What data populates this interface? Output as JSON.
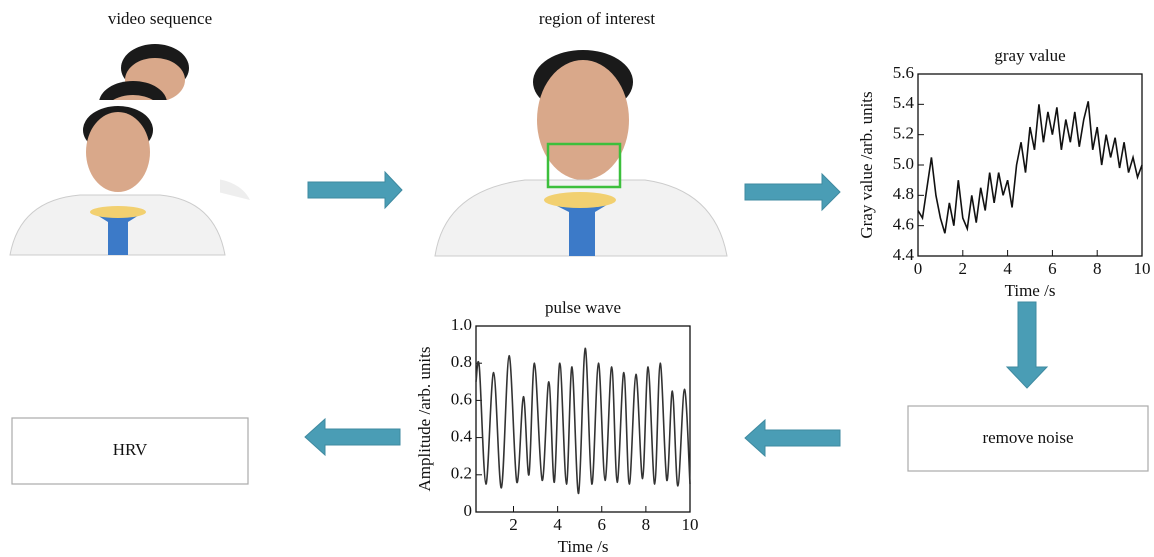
{
  "labels": {
    "video": "video sequence",
    "roi": "region of interest",
    "hrv": "HRV",
    "remove_noise": "remove noise"
  },
  "charts": [
    {
      "type": "line",
      "title": "gray value",
      "xlabel": "Time /s",
      "ylabel": "Gray value /arb. units",
      "color": "#111111",
      "xlim": [
        0,
        10
      ],
      "ylim": [
        4.4,
        5.6
      ],
      "xticks": [
        0,
        2,
        4,
        6,
        8,
        10
      ],
      "yticks": [
        4.4,
        4.6,
        4.8,
        {
          "value": 5,
          "label": "5.0"
        },
        5.2,
        5.4,
        5.6
      ],
      "x": [
        0,
        0.2,
        0.4,
        0.6,
        0.8,
        1.0,
        1.2,
        1.4,
        1.6,
        1.8,
        2.0,
        2.2,
        2.4,
        2.6,
        2.8,
        3.0,
        3.2,
        3.4,
        3.6,
        3.8,
        4.0,
        4.2,
        4.4,
        4.6,
        4.8,
        5.0,
        5.2,
        5.4,
        5.6,
        5.8,
        6.0,
        6.2,
        6.4,
        6.6,
        6.8,
        7.0,
        7.2,
        7.4,
        7.6,
        7.8,
        8.0,
        8.2,
        8.4,
        8.6,
        8.8,
        9.0,
        9.2,
        9.4,
        9.6,
        9.8,
        10
      ],
      "values": [
        4.7,
        4.65,
        4.85,
        5.05,
        4.8,
        4.65,
        4.55,
        4.75,
        4.6,
        4.9,
        4.65,
        4.58,
        4.8,
        4.62,
        4.85,
        4.7,
        4.95,
        4.75,
        4.95,
        4.8,
        4.9,
        4.72,
        5.0,
        5.15,
        4.95,
        5.25,
        5.1,
        5.4,
        5.15,
        5.35,
        5.2,
        5.38,
        5.1,
        5.3,
        5.15,
        5.35,
        5.12,
        5.3,
        5.42,
        5.1,
        5.25,
        5.0,
        5.2,
        5.05,
        5.18,
        4.98,
        5.15,
        4.95,
        5.05,
        4.92,
        5.0
      ]
    },
    {
      "type": "line",
      "title": "pulse wave",
      "xlabel": "Time /s",
      "ylabel": "Amplitude /arb. units",
      "color": "#333333",
      "xlim": [
        0.3,
        10
      ],
      "ylim": [
        0,
        1
      ],
      "xticks": [
        2,
        4,
        6,
        8,
        10
      ],
      "yticks": [
        0,
        0.2,
        0.4,
        0.6,
        0.8,
        {
          "value": 1,
          "label": "1.0"
        }
      ],
      "x": [
        0.3,
        0.45,
        0.75,
        1.1,
        1.45,
        1.8,
        2.15,
        2.45,
        2.7,
        2.95,
        3.3,
        3.6,
        3.85,
        4.1,
        4.4,
        4.65,
        4.95,
        5.25,
        5.55,
        5.85,
        6.15,
        6.45,
        6.7,
        7.0,
        7.25,
        7.55,
        7.85,
        8.1,
        8.4,
        8.65,
        8.95,
        9.2,
        9.45,
        9.75,
        10.0
      ],
      "values": [
        0.7,
        0.78,
        0.15,
        0.75,
        0.13,
        0.84,
        0.16,
        0.62,
        0.2,
        0.8,
        0.17,
        0.7,
        0.16,
        0.8,
        0.15,
        0.78,
        0.1,
        0.88,
        0.15,
        0.8,
        0.17,
        0.78,
        0.16,
        0.75,
        0.15,
        0.74,
        0.18,
        0.78,
        0.15,
        0.8,
        0.17,
        0.65,
        0.14,
        0.66,
        0.15
      ]
    }
  ]
}
